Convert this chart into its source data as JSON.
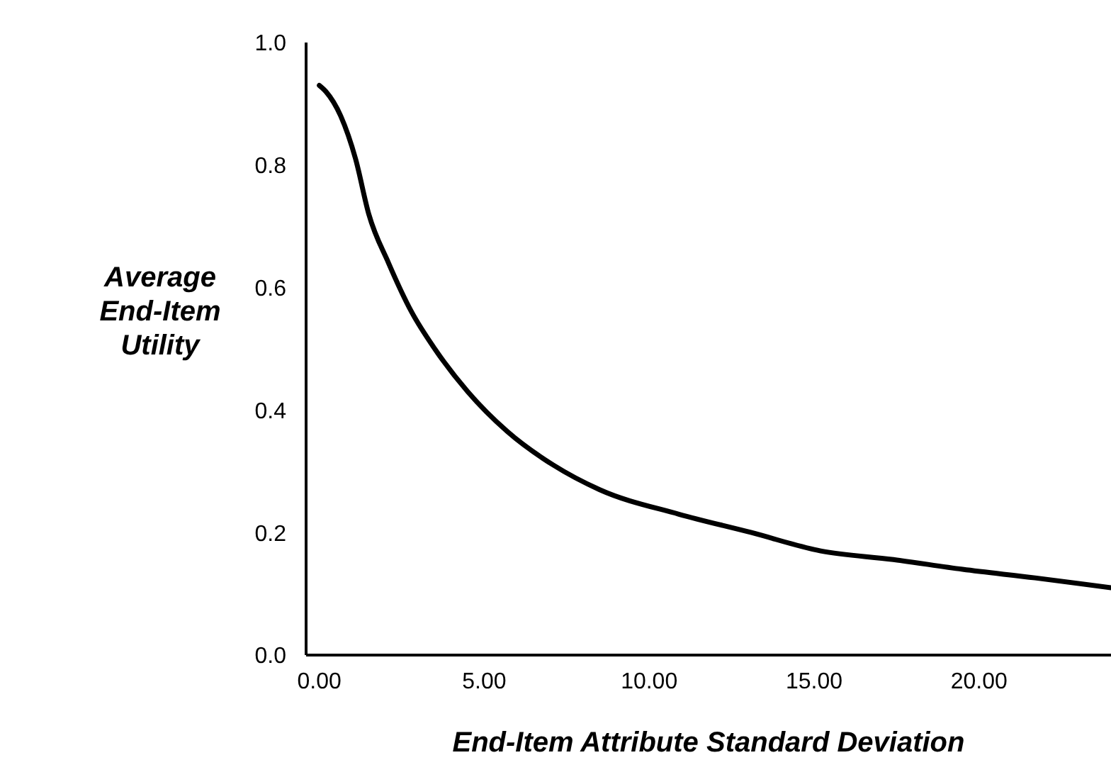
{
  "chart_data": {
    "type": "line",
    "xlabel": "End-Item Attribute Standard Deviation",
    "ylabel": "Average End-Item Utility",
    "x": [
      0,
      0.2,
      0.65,
      1.1,
      1.5,
      2.1,
      2.8,
      3.5,
      4.5,
      5.7,
      7.1,
      8.5,
      10.9,
      13.1,
      15.2,
      17.4,
      19.5,
      21.7,
      24.0
    ],
    "series": [
      {
        "color": "#000000",
        "values": [
          0.93,
          0.92,
          0.88,
          0.81,
          0.72,
          0.64,
          0.56,
          0.5,
          0.43,
          0.365,
          0.31,
          0.27,
          0.23,
          0.2,
          0.17,
          0.156,
          0.14,
          0.126,
          0.11
        ]
      }
    ],
    "xlim": [
      -0.4,
      24.0
    ],
    "ylim": [
      0,
      1
    ],
    "xticks": [
      {
        "value": 0,
        "label": "0.00"
      },
      {
        "value": 5,
        "label": "5.00"
      },
      {
        "value": 10,
        "label": "10.00"
      },
      {
        "value": 15,
        "label": "15.00"
      },
      {
        "value": 20,
        "label": "20.00"
      }
    ],
    "yticks": [
      {
        "value": 0,
        "label": "0.0"
      },
      {
        "value": 0.2,
        "label": "0.2"
      },
      {
        "value": 0.4,
        "label": "0.4"
      },
      {
        "value": 0.6,
        "label": "0.6"
      },
      {
        "value": 0.8,
        "label": "0.8"
      },
      {
        "value": 1,
        "label": "1.0"
      }
    ],
    "grid": false,
    "legend": false,
    "marker": "none",
    "line_style": "solid"
  }
}
